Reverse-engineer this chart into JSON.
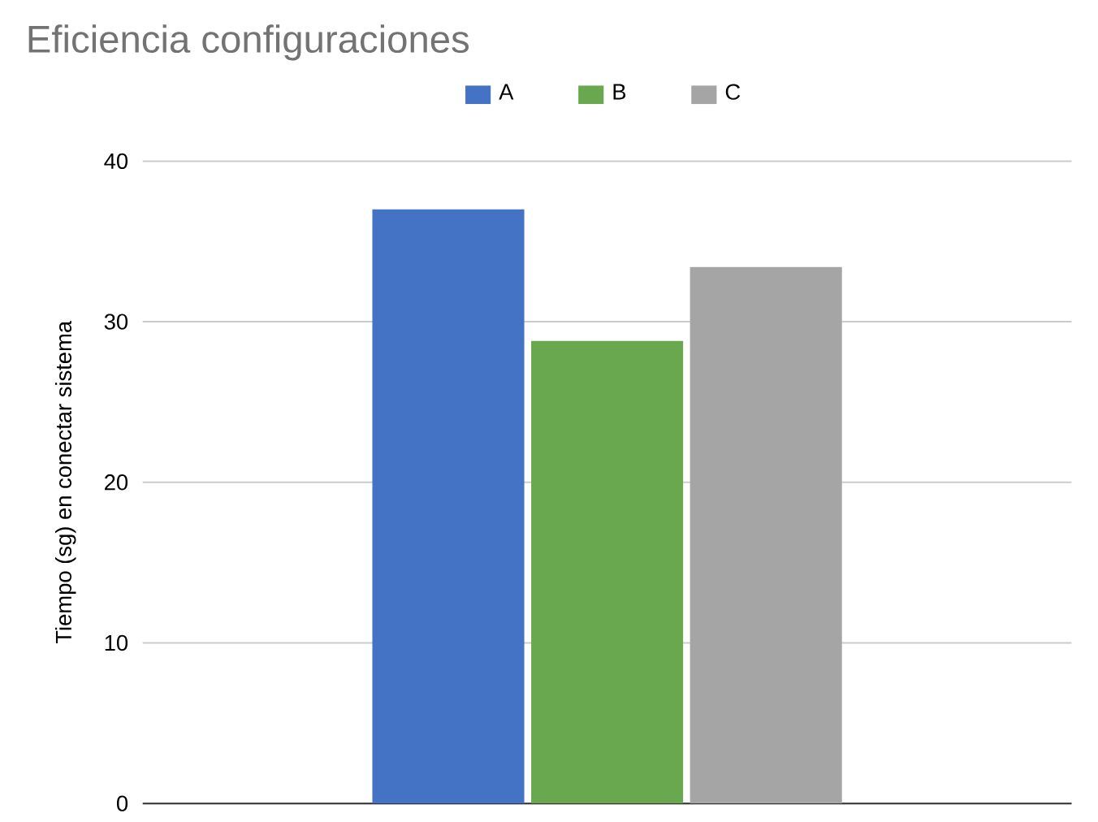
{
  "chart_data": {
    "type": "bar",
    "title": "Eficiencia configuraciones",
    "ylabel": "Tiempo (sg) en conectar sistema",
    "categories": [
      null
    ],
    "series": [
      {
        "name": "A",
        "color": "#4472c4",
        "values": [
          37
        ]
      },
      {
        "name": "B",
        "color": "#6aa84f",
        "values": [
          28.8
        ]
      },
      {
        "name": "C",
        "color": "#a5a5a5",
        "values": [
          33.4
        ]
      }
    ],
    "ylim": [
      0,
      40
    ],
    "yticks": [
      0,
      10,
      20,
      30,
      40
    ],
    "grid": "y",
    "legend": "top"
  }
}
